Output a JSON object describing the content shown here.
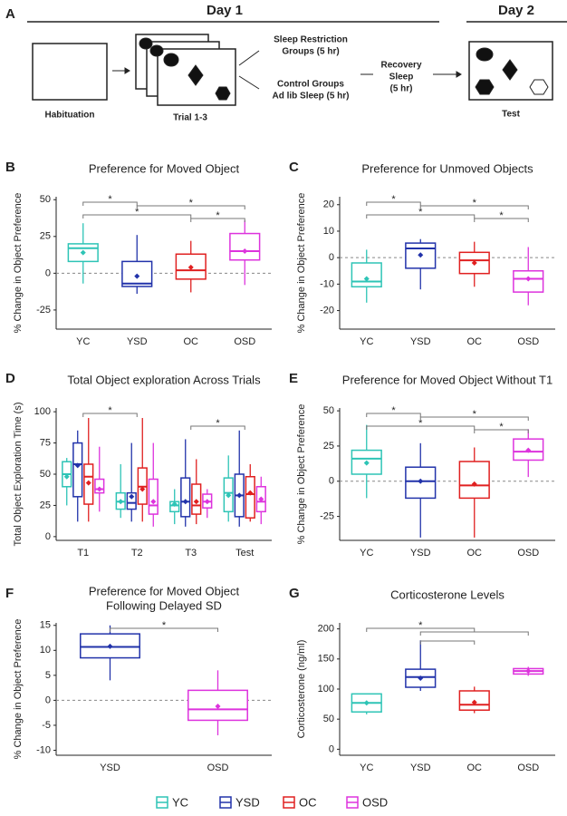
{
  "diagram": {
    "panel": "A",
    "day1": "Day 1",
    "day2": "Day 2",
    "habituation": "Habituation",
    "trials": "Trial 1-3",
    "sleep_restriction": [
      "Sleep Restriction",
      "Groups (5 hr)"
    ],
    "control": [
      "Control Groups",
      "Ad lib Sleep (5 hr)"
    ],
    "recovery": [
      "Recovery",
      "Sleep",
      "(5 hr)"
    ],
    "test": "Test"
  },
  "chart_data": [
    {
      "type": "box",
      "panel": "B",
      "title": [
        "Preference for Moved Object"
      ],
      "ylabel": "% Change in Object Preference",
      "categories": [
        "YC",
        "YSD",
        "OC",
        "OSD"
      ],
      "colors": [
        "#2ec4b6",
        "#2233aa",
        "#e02020",
        "#dd33dd"
      ],
      "boxes": [
        {
          "min": -7,
          "q1": 8,
          "median": 17,
          "q3": 20,
          "max": 34,
          "mean": 14
        },
        {
          "min": -14,
          "q1": -9,
          "median": -7,
          "q3": 8,
          "max": 26,
          "mean": -2
        },
        {
          "min": -13,
          "q1": -4,
          "median": 2,
          "q3": 13,
          "max": 22,
          "mean": 4
        },
        {
          "min": -8,
          "q1": 9,
          "median": 15,
          "q3": 27,
          "max": 36,
          "mean": 15
        }
      ],
      "ylim": [
        -38,
        52
      ],
      "yticks": [
        -25,
        0,
        25,
        50
      ],
      "reference_line": 0,
      "significance": [
        {
          "between": [
            "YC",
            "YSD"
          ],
          "label": "*"
        },
        {
          "between": [
            "YC",
            "OC"
          ],
          "label": "*"
        },
        {
          "between": [
            "YSD",
            "OSD"
          ],
          "label": "*"
        },
        {
          "between": [
            "OC",
            "OSD"
          ],
          "label": "*"
        }
      ]
    },
    {
      "type": "box",
      "panel": "C",
      "title": [
        "Preference for Unmoved Objects"
      ],
      "ylabel": "% Change in Object Preference",
      "categories": [
        "YC",
        "YSD",
        "OC",
        "OSD"
      ],
      "colors": [
        "#2ec4b6",
        "#2233aa",
        "#e02020",
        "#dd33dd"
      ],
      "boxes": [
        {
          "min": -17,
          "q1": -11,
          "median": -9,
          "q3": -2,
          "max": 3,
          "mean": -8
        },
        {
          "min": -12,
          "q1": -4,
          "median": 3.5,
          "q3": 5.5,
          "max": 7,
          "mean": 1
        },
        {
          "min": -11,
          "q1": -6,
          "median": -1,
          "q3": 2,
          "max": 6,
          "mean": -2
        },
        {
          "min": -18,
          "q1": -13,
          "median": -8,
          "q3": -5,
          "max": 4,
          "mean": -8
        }
      ],
      "ylim": [
        -27,
        23
      ],
      "yticks": [
        -20,
        -10,
        0,
        10,
        20
      ],
      "reference_line": 0,
      "significance": [
        {
          "between": [
            "YC",
            "YSD"
          ],
          "label": "*"
        },
        {
          "between": [
            "YC",
            "OC"
          ],
          "label": "*"
        },
        {
          "between": [
            "YSD",
            "OSD"
          ],
          "label": "*"
        },
        {
          "between": [
            "OC",
            "OSD"
          ],
          "label": "*"
        }
      ]
    },
    {
      "type": "box",
      "panel": "D",
      "title": [
        "Total Object exploration Across Trials"
      ],
      "ylabel": "Total Object Exploration Time (s)",
      "categories": [
        "T1",
        "T2",
        "T3",
        "Test"
      ],
      "series": [
        {
          "name": "YC",
          "color": "#2ec4b6",
          "boxes": [
            {
              "min": 25,
              "q1": 40,
              "median": 50,
              "q3": 60,
              "max": 63,
              "mean": 48
            },
            {
              "min": 15,
              "q1": 22,
              "median": 28,
              "q3": 35,
              "max": 58,
              "mean": 28
            },
            {
              "min": 10,
              "q1": 20,
              "median": 25,
              "q3": 28,
              "max": 38,
              "mean": 26
            },
            {
              "min": 12,
              "q1": 20,
              "median": 35,
              "q3": 47,
              "max": 65,
              "mean": 33
            }
          ]
        },
        {
          "name": "YSD",
          "color": "#2233aa",
          "boxes": [
            {
              "min": 12,
              "q1": 32,
              "median": 58,
              "q3": 75,
              "max": 85,
              "mean": 57
            },
            {
              "min": 12,
              "q1": 22,
              "median": 27,
              "q3": 35,
              "max": 75,
              "mean": 32
            },
            {
              "min": 8,
              "q1": 16,
              "median": 28,
              "q3": 47,
              "max": 78,
              "mean": 28
            },
            {
              "min": 8,
              "q1": 16,
              "median": 33,
              "q3": 50,
              "max": 85,
              "mean": 33
            }
          ]
        },
        {
          "name": "OC",
          "color": "#e02020",
          "boxes": [
            {
              "min": 12,
              "q1": 26,
              "median": 48,
              "q3": 58,
              "max": 95,
              "mean": 43
            },
            {
              "min": 12,
              "q1": 26,
              "median": 40,
              "q3": 55,
              "max": 95,
              "mean": 38
            },
            {
              "min": 10,
              "q1": 18,
              "median": 25,
              "q3": 42,
              "max": 62,
              "mean": 28
            },
            {
              "min": 12,
              "q1": 15,
              "median": 34,
              "q3": 48,
              "max": 58,
              "mean": 35
            }
          ]
        },
        {
          "name": "OSD",
          "color": "#dd33dd",
          "boxes": [
            {
              "min": 20,
              "q1": 35,
              "median": 38,
              "q3": 46,
              "max": 72,
              "mean": 38
            },
            {
              "min": 8,
              "q1": 18,
              "median": 25,
              "q3": 46,
              "max": 75,
              "mean": 28
            },
            {
              "min": 15,
              "q1": 23,
              "median": 28,
              "q3": 34,
              "max": 38,
              "mean": 28
            },
            {
              "min": 10,
              "q1": 20,
              "median": 28,
              "q3": 40,
              "max": 48,
              "mean": 30
            }
          ]
        }
      ],
      "ylim": [
        -3,
        103
      ],
      "yticks": [
        0,
        25,
        50,
        75,
        100
      ],
      "significance": [
        {
          "between": [
            "T1",
            "T2"
          ],
          "label": "*"
        },
        {
          "between": [
            "T3",
            "Test"
          ],
          "label": "*"
        }
      ]
    },
    {
      "type": "box",
      "panel": "E",
      "title": [
        "Preference for Moved Object Without T1"
      ],
      "ylabel": "% Change in Object Preference",
      "categories": [
        "YC",
        "YSD",
        "OC",
        "OSD"
      ],
      "colors": [
        "#2ec4b6",
        "#2233aa",
        "#e02020",
        "#dd33dd"
      ],
      "boxes": [
        {
          "min": -12,
          "q1": 5,
          "median": 16,
          "q3": 22,
          "max": 40,
          "mean": 13
        },
        {
          "min": -40,
          "q1": -12,
          "median": 0,
          "q3": 10,
          "max": 27,
          "mean": 0
        },
        {
          "min": -40,
          "q1": -12,
          "median": -3,
          "q3": 14,
          "max": 24,
          "mean": -2
        },
        {
          "min": 3,
          "q1": 15,
          "median": 21,
          "q3": 30,
          "max": 37,
          "mean": 22
        }
      ],
      "ylim": [
        -42,
        52
      ],
      "yticks": [
        -25,
        0,
        25,
        50
      ],
      "reference_line": 0,
      "significance": [
        {
          "between": [
            "YC",
            "YSD"
          ],
          "label": "*"
        },
        {
          "between": [
            "YC",
            "OC"
          ],
          "label": "*"
        },
        {
          "between": [
            "YSD",
            "OSD"
          ],
          "label": "*"
        },
        {
          "between": [
            "OC",
            "OSD"
          ],
          "label": "*"
        }
      ]
    },
    {
      "type": "box",
      "panel": "F",
      "title": [
        "Preference for Moved Object",
        "Following Delayed SD"
      ],
      "ylabel": "% Change in Object Preference",
      "categories": [
        "YSD",
        "OSD"
      ],
      "colors": [
        "#2233aa",
        "#dd33dd"
      ],
      "boxes": [
        {
          "min": 4,
          "q1": 8.5,
          "median": 10.7,
          "q3": 13.3,
          "max": 15,
          "mean": 10.8
        },
        {
          "min": -7,
          "q1": -4,
          "median": -1.8,
          "q3": 2,
          "max": 6,
          "mean": -1.2
        }
      ],
      "ylim": [
        -11,
        15.5
      ],
      "yticks": [
        -10,
        -5,
        0,
        5,
        10,
        15
      ],
      "reference_line": 0,
      "significance": [
        {
          "between": [
            "YSD",
            "OSD"
          ],
          "label": "*"
        }
      ]
    },
    {
      "type": "box",
      "panel": "G",
      "title": [
        "Corticosterone Levels"
      ],
      "ylabel": "Corticosterone (ng/ml)",
      "categories": [
        "YC",
        "YSD",
        "OC",
        "OSD"
      ],
      "colors": [
        "#2ec4b6",
        "#2233aa",
        "#e02020",
        "#dd33dd"
      ],
      "boxes": [
        {
          "min": 58,
          "q1": 62,
          "median": 77,
          "q3": 92,
          "max": 92,
          "mean": 77
        },
        {
          "min": 97,
          "q1": 103,
          "median": 120,
          "q3": 133,
          "max": 181,
          "mean": 118
        },
        {
          "min": 60,
          "q1": 65,
          "median": 74,
          "q3": 97,
          "max": 104,
          "mean": 78
        },
        {
          "min": 122,
          "q1": 125,
          "median": 130,
          "q3": 134,
          "max": 137,
          "mean": 130
        }
      ],
      "ylim": [
        -10,
        210
      ],
      "yticks": [
        0,
        50,
        100,
        150,
        200
      ],
      "significance": [
        {
          "between": [
            "YC",
            "OC"
          ],
          "label": "*"
        },
        {
          "between": [
            "YSD",
            "OC"
          ]
        },
        {
          "between": [
            "YSD",
            "OSD"
          ]
        }
      ]
    }
  ],
  "legend": [
    {
      "name": "YC",
      "color": "#2ec4b6"
    },
    {
      "name": "YSD",
      "color": "#2233aa"
    },
    {
      "name": "OC",
      "color": "#e02020"
    },
    {
      "name": "OSD",
      "color": "#dd33dd"
    }
  ]
}
